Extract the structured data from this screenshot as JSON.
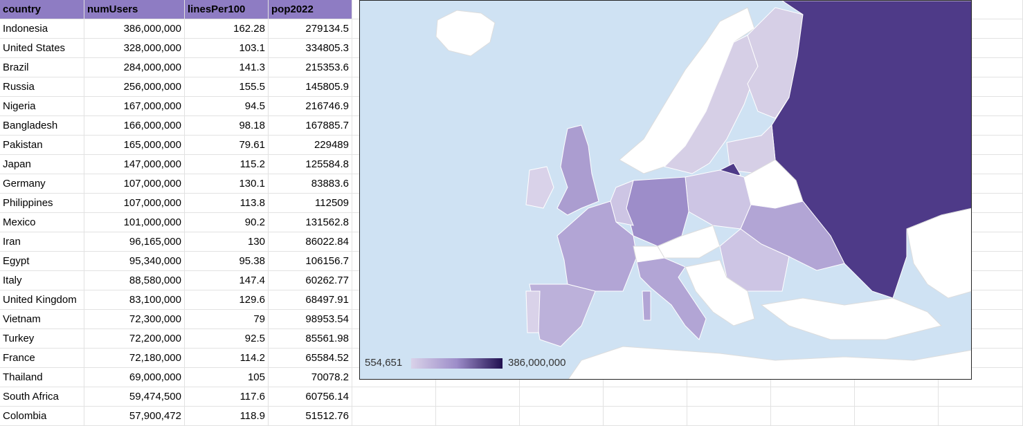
{
  "columns": [
    "country",
    "numUsers",
    "linesPer100",
    "pop2022"
  ],
  "rows": [
    [
      "Indonesia",
      "386,000,000",
      "162.28",
      "279134.5"
    ],
    [
      "United States",
      "328,000,000",
      "103.1",
      "334805.3"
    ],
    [
      "Brazil",
      "284,000,000",
      "141.3",
      "215353.6"
    ],
    [
      "Russia",
      "256,000,000",
      "155.5",
      "145805.9"
    ],
    [
      "Nigeria",
      "167,000,000",
      "94.5",
      "216746.9"
    ],
    [
      "Bangladesh",
      "166,000,000",
      "98.18",
      "167885.7"
    ],
    [
      "Pakistan",
      "165,000,000",
      "79.61",
      "229489"
    ],
    [
      "Japan",
      "147,000,000",
      "115.2",
      "125584.8"
    ],
    [
      "Germany",
      "107,000,000",
      "130.1",
      "83883.6"
    ],
    [
      "Philippines",
      "107,000,000",
      "113.8",
      "112509"
    ],
    [
      "Mexico",
      "101,000,000",
      "90.2",
      "131562.8"
    ],
    [
      "Iran",
      "96,165,000",
      "130",
      "86022.84"
    ],
    [
      "Egypt",
      "95,340,000",
      "95.38",
      "106156.7"
    ],
    [
      "Italy",
      "88,580,000",
      "147.4",
      "60262.77"
    ],
    [
      "United Kingdom",
      "83,100,000",
      "129.6",
      "68497.91"
    ],
    [
      "Vietnam",
      "72,300,000",
      "79",
      "98953.54"
    ],
    [
      "Turkey",
      "72,200,000",
      "92.5",
      "85561.98"
    ],
    [
      "France",
      "72,180,000",
      "114.2",
      "65584.52"
    ],
    [
      "Thailand",
      "69,000,000",
      "105",
      "70078.2"
    ],
    [
      "South Africa",
      "59,474,500",
      "117.6",
      "60756.14"
    ],
    [
      "Colombia",
      "57,900,472",
      "118.9",
      "51512.76"
    ]
  ],
  "geo_chart": {
    "legend_min": "554,651",
    "legend_max": "386,000,000",
    "colors": {
      "sea": "#cfe2f3",
      "no_data": "#ffffff",
      "scale_low": "#d9d2e9",
      "scale_mid": "#9d8dc9",
      "scale_high": "#4e3a88",
      "russia": "#4e3a88",
      "germany": "#9d8dc9",
      "france_italy": "#b2a5d5",
      "spain": "#bcb1da",
      "scandinavia": "#d6cfe6",
      "uk": "#ab9dd0"
    }
  }
}
